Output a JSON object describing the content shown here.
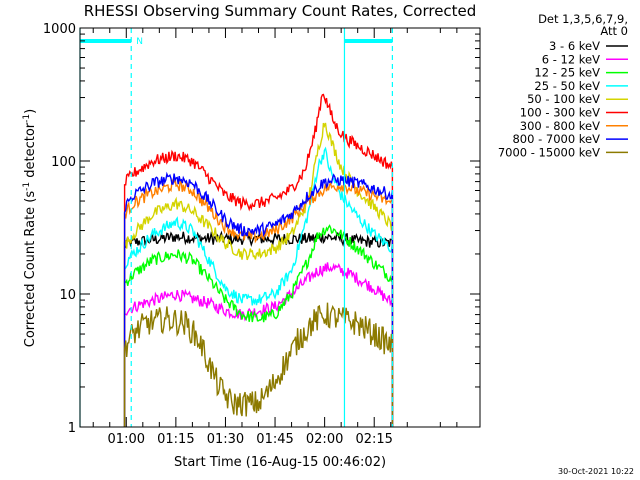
{
  "chart_data": {
    "type": "line",
    "title": "RHESSI Observing Summary Count Rates, Corrected",
    "xlabel": "Start Time (16-Aug-15 00:46:02)",
    "ylabel_main": "Corrected Count Rate (s",
    "ylabel_sup1": "-1",
    "ylabel_mid": " detector",
    "ylabel_sup2": "-1",
    "ylabel_end": ")",
    "yscale": "log",
    "ylim": [
      1,
      1000
    ],
    "xlim_minutes": [
      46,
      167
    ],
    "x_ticks": [
      {
        "minute": 60,
        "label": "01:00"
      },
      {
        "minute": 75,
        "label": "01:15"
      },
      {
        "minute": 90,
        "label": "01:30"
      },
      {
        "minute": 105,
        "label": "01:45"
      },
      {
        "minute": 120,
        "label": "02:00"
      },
      {
        "minute": 135,
        "label": "02:15"
      }
    ],
    "y_ticks": [
      {
        "value": 1,
        "label": "1"
      },
      {
        "value": 10,
        "label": "10"
      },
      {
        "value": 100,
        "label": "100"
      },
      {
        "value": 1000,
        "label": "1000"
      }
    ],
    "legend_header": [
      "Det 1,3,5,6,7,9,",
      "Att 0"
    ],
    "legend_position": "right",
    "data_range_minutes": [
      59.5,
      140.5
    ],
    "night_segments": [
      [
        46,
        61.5
      ],
      [
        126,
        140.5
      ]
    ],
    "night_label": "N",
    "vertical_markers": [
      {
        "minute": 46,
        "style": "solid"
      },
      {
        "minute": 61.5,
        "style": "dashed"
      },
      {
        "minute": 126,
        "style": "solid"
      },
      {
        "minute": 140.5,
        "style": "dashed"
      }
    ],
    "series": [
      {
        "name": "3 - 6 keV",
        "color": "#000000",
        "x": [
          59.5,
          65,
          75,
          85,
          95,
          105,
          115,
          120,
          125,
          130,
          140.5
        ],
        "y": [
          24,
          25,
          27,
          26,
          26,
          26,
          26,
          27,
          26,
          25,
          24
        ]
      },
      {
        "name": "6 - 12 keV",
        "color": "#ff00ff",
        "x": [
          59.5,
          65,
          75,
          85,
          90,
          95,
          105,
          110,
          115,
          118,
          122,
          128,
          135,
          140.5
        ],
        "y": [
          7.5,
          8.5,
          10,
          8.5,
          7.5,
          7,
          8,
          10,
          13,
          15,
          16,
          14,
          11,
          8.5
        ]
      },
      {
        "name": "12 - 25 keV",
        "color": "#00ff00",
        "x": [
          59.5,
          62,
          68,
          75,
          80,
          85,
          90,
          95,
          100,
          105,
          110,
          115,
          118,
          121,
          125,
          130,
          135,
          140.5
        ],
        "y": [
          12,
          14,
          18,
          20,
          18,
          13,
          9,
          7,
          6.5,
          7,
          10,
          18,
          28,
          32,
          28,
          22,
          17,
          13
        ]
      },
      {
        "name": "25 - 50 keV",
        "color": "#00ffff",
        "x": [
          59.5,
          62,
          68,
          75,
          80,
          85,
          90,
          95,
          100,
          105,
          110,
          115,
          118,
          120,
          122,
          125,
          130,
          135,
          140.5
        ],
        "y": [
          17,
          20,
          28,
          35,
          30,
          18,
          11,
          9,
          9,
          10,
          15,
          40,
          90,
          120,
          80,
          55,
          38,
          28,
          22
        ]
      },
      {
        "name": "50 - 100 keV",
        "color": "#d4d400",
        "x": [
          59.5,
          62,
          68,
          75,
          80,
          85,
          90,
          95,
          100,
          105,
          110,
          115,
          118,
          120,
          122,
          125,
          130,
          135,
          140.5
        ],
        "y": [
          23,
          28,
          40,
          48,
          42,
          32,
          24,
          20,
          20,
          22,
          28,
          50,
          120,
          200,
          140,
          90,
          60,
          45,
          32
        ]
      },
      {
        "name": "100 - 300 keV",
        "color": "#ff0000",
        "x": [
          59.5,
          62,
          68,
          75,
          80,
          85,
          90,
          95,
          100,
          105,
          110,
          114,
          117,
          119.5,
          121,
          123,
          126,
          130,
          135,
          140.5
        ],
        "y": [
          68,
          80,
          100,
          110,
          100,
          75,
          55,
          48,
          48,
          52,
          62,
          85,
          160,
          340,
          260,
          190,
          150,
          130,
          110,
          90
        ]
      },
      {
        "name": "300 - 800 keV",
        "color": "#ff8000",
        "x": [
          59.5,
          62,
          68,
          75,
          80,
          85,
          90,
          95,
          100,
          105,
          110,
          115,
          120,
          125,
          130,
          135,
          140.5
        ],
        "y": [
          40,
          48,
          58,
          67,
          60,
          44,
          32,
          27,
          27,
          30,
          37,
          50,
          62,
          66,
          60,
          55,
          48
        ]
      },
      {
        "name": "800 - 7000 keV",
        "color": "#0000ff",
        "x": [
          59.5,
          62,
          68,
          75,
          80,
          85,
          90,
          95,
          100,
          105,
          110,
          115,
          120,
          125,
          130,
          135,
          140.5
        ],
        "y": [
          45,
          55,
          68,
          75,
          68,
          50,
          36,
          30,
          30,
          33,
          40,
          55,
          70,
          72,
          68,
          62,
          55
        ]
      },
      {
        "name": "7000 - 15000 keV",
        "color": "#8c7a00",
        "x": [
          59.5,
          62,
          66,
          72,
          78,
          82,
          85,
          88,
          92,
          100,
          104,
          108,
          112,
          116,
          120,
          125,
          130,
          135,
          140.5
        ],
        "y": [
          4,
          5,
          6,
          6.5,
          6,
          4.5,
          3,
          2,
          1.5,
          1.5,
          2,
          3,
          4.5,
          6,
          7,
          6.5,
          6,
          5,
          4
        ]
      }
    ],
    "timestamp": "30-Oct-2021 10:22"
  }
}
